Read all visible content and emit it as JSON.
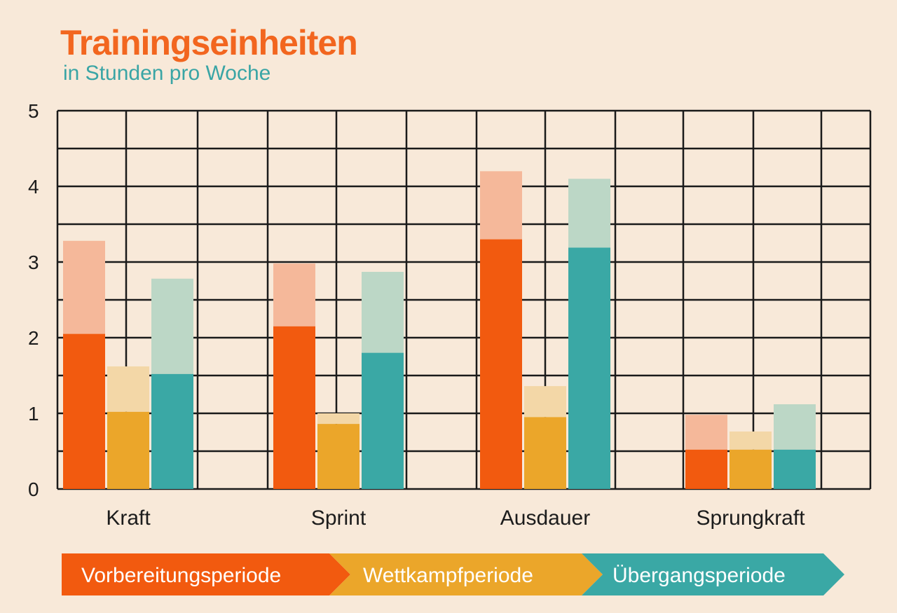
{
  "chart_data": {
    "type": "bar",
    "title": "Trainingseinheiten",
    "subtitle": "in Stunden pro Woche",
    "categories": [
      "Kraft",
      "Sprint",
      "Ausdauer",
      "Sprungkraft"
    ],
    "ylim": [
      0,
      5
    ],
    "yticks": [
      0,
      1,
      2,
      3,
      4,
      5
    ],
    "grid": true,
    "series": [
      {
        "name": "Vorbereitungsperiode",
        "color": "#f25a0f",
        "light_color": "#f5b89a",
        "values": [
          2.05,
          2.15,
          3.3,
          0.52
        ],
        "range_high": [
          3.28,
          2.98,
          4.2,
          0.98
        ]
      },
      {
        "name": "Wettkampfperiode",
        "color": "#eba62a",
        "light_color": "#f3d7a7",
        "values": [
          1.02,
          0.86,
          0.95,
          0.52
        ],
        "range_high": [
          1.62,
          1.0,
          1.36,
          0.76
        ]
      },
      {
        "name": "Übergangsperiode",
        "color": "#3aa8a5",
        "light_color": "#bcd7c6",
        "values": [
          1.52,
          1.8,
          3.19,
          0.52
        ],
        "range_high": [
          2.78,
          2.87,
          4.1,
          1.12
        ]
      }
    ],
    "legend_position": "bottom"
  }
}
